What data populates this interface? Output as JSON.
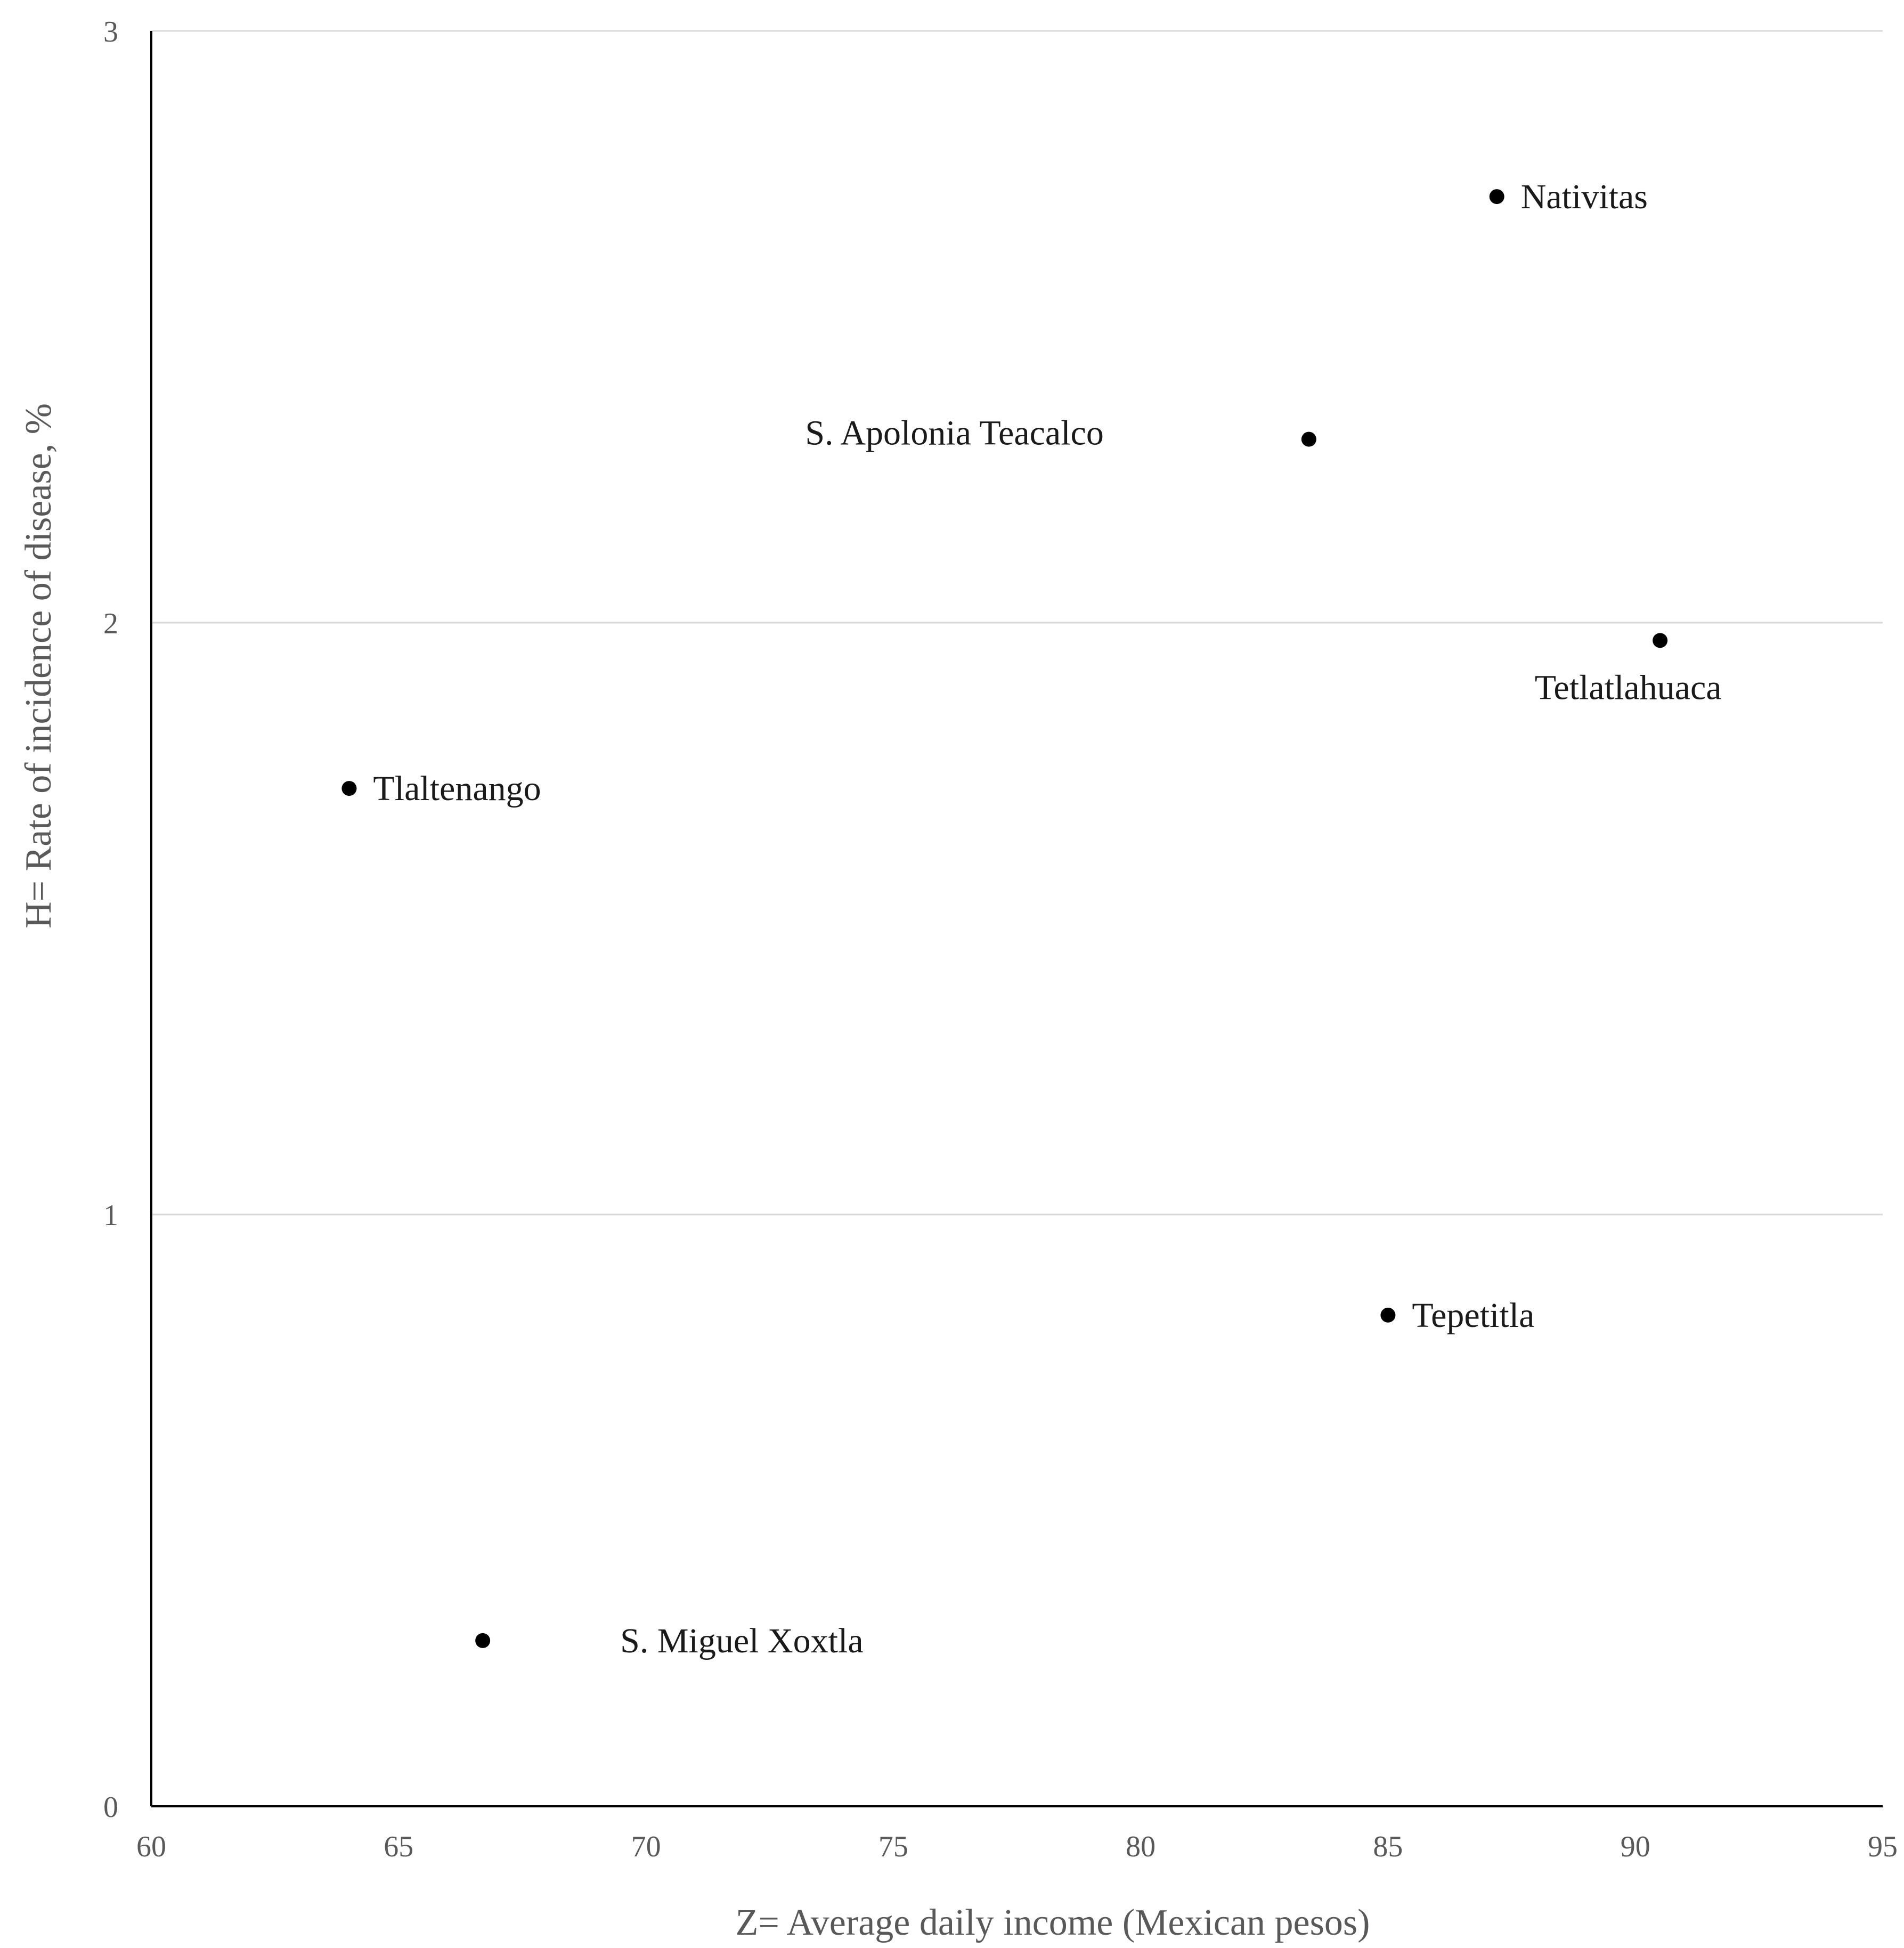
{
  "chart_data": {
    "type": "scatter",
    "xlabel": "Z= Average daily income (Mexican pesos)",
    "ylabel": "H= Rate of incidence of disease, %",
    "xlim": [
      60,
      95
    ],
    "ylim": [
      0,
      3
    ],
    "x_ticks": [
      "60",
      "65",
      "70",
      "75",
      "80",
      "85",
      "90",
      "95"
    ],
    "y_ticks": [
      "0",
      "1",
      "2",
      "3"
    ],
    "grid": "horizontal",
    "legend": "none",
    "point_color": "#000000",
    "points": [
      {
        "label": "Nativitas",
        "x": 87.2,
        "y": 2.72,
        "label_side": "right"
      },
      {
        "label": "S. Apolonia Teacalco",
        "x": 83.4,
        "y": 2.31,
        "label_side": "left-far"
      },
      {
        "label": "Tetlatlahuaca",
        "x": 90.5,
        "y": 1.97,
        "label_side": "below"
      },
      {
        "label": "Tlaltenango",
        "x": 64.0,
        "y": 1.72,
        "label_side": "right"
      },
      {
        "label": "Tepetitla",
        "x": 85.0,
        "y": 0.83,
        "label_side": "right"
      },
      {
        "label": "S. Miguel Xoxtla",
        "x": 66.7,
        "y": 0.28,
        "label_side": "right-far"
      }
    ]
  }
}
